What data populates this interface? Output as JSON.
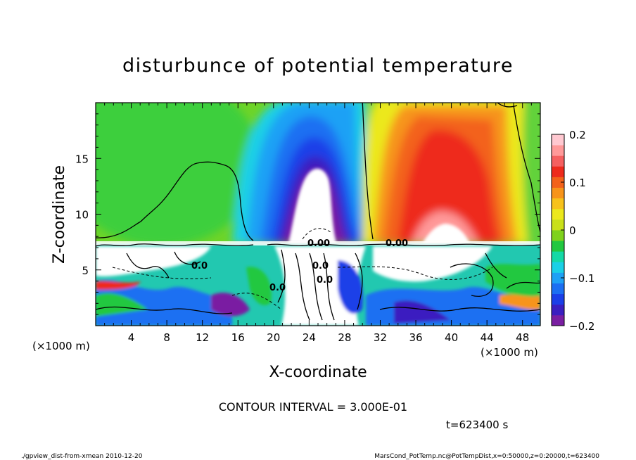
{
  "chart_data": {
    "type": "heatmap",
    "title": "disturbunce of potential temperature",
    "xlabel": "X-coordinate",
    "ylabel": "Z-coordinate",
    "x_unit_left": "(×1000 m)",
    "x_unit_right": "(×1000 m)",
    "xlim": [
      0,
      50
    ],
    "ylim": [
      0,
      20
    ],
    "x_ticks": [
      4,
      8,
      12,
      16,
      20,
      24,
      28,
      32,
      36,
      40,
      44,
      48
    ],
    "x_tick_labels": [
      "4",
      "8",
      "12",
      "16",
      "20",
      "24",
      "28",
      "32",
      "36",
      "40",
      "44",
      "48"
    ],
    "y_ticks": [
      5,
      10,
      15
    ],
    "y_tick_labels": [
      "5",
      "10",
      "15"
    ],
    "colorbar": {
      "range": [
        -0.2,
        0.2
      ],
      "ticks": [
        0.2,
        0.1,
        0,
        -0.1,
        -0.2
      ],
      "tick_labels": [
        "0.2",
        "0.1",
        "0",
        "−0.1",
        "−0.2"
      ],
      "colors": [
        "#7a1fa2",
        "#3a1fc0",
        "#1b3fe8",
        "#1c6ff2",
        "#1ea1f5",
        "#1ad0e6",
        "#14d9a6",
        "#22c840",
        "#7fd21c",
        "#c9e01a",
        "#ece81c",
        "#f7c21c",
        "#f7941a",
        "#f3621a",
        "#ee2a1c",
        "#f56060",
        "#ff9999",
        "#ffc8d0"
      ]
    },
    "field_features": [
      {
        "name": "cold plume",
        "x_center": 24.5,
        "z_top": 14.5,
        "min_value": -0.2
      },
      {
        "name": "warm plume",
        "x_center": 39,
        "z_top": 16,
        "max_value": 0.2
      },
      {
        "name": "inversion layer",
        "z": 7.3
      }
    ],
    "contour_labels": [
      "0.00",
      "0.0",
      "0.0",
      "0.00",
      "0.0",
      "0.0"
    ],
    "contour_interval_text": "CONTOUR INTERVAL = 3.000E-01",
    "time_text": "t=623400 s"
  },
  "footer": {
    "left": "./gpview_dist-from-xmean  2010-12-20",
    "right": "MarsCond_PotTemp.nc@PotTempDist,x=0:50000,z=0:20000,t=623400"
  }
}
